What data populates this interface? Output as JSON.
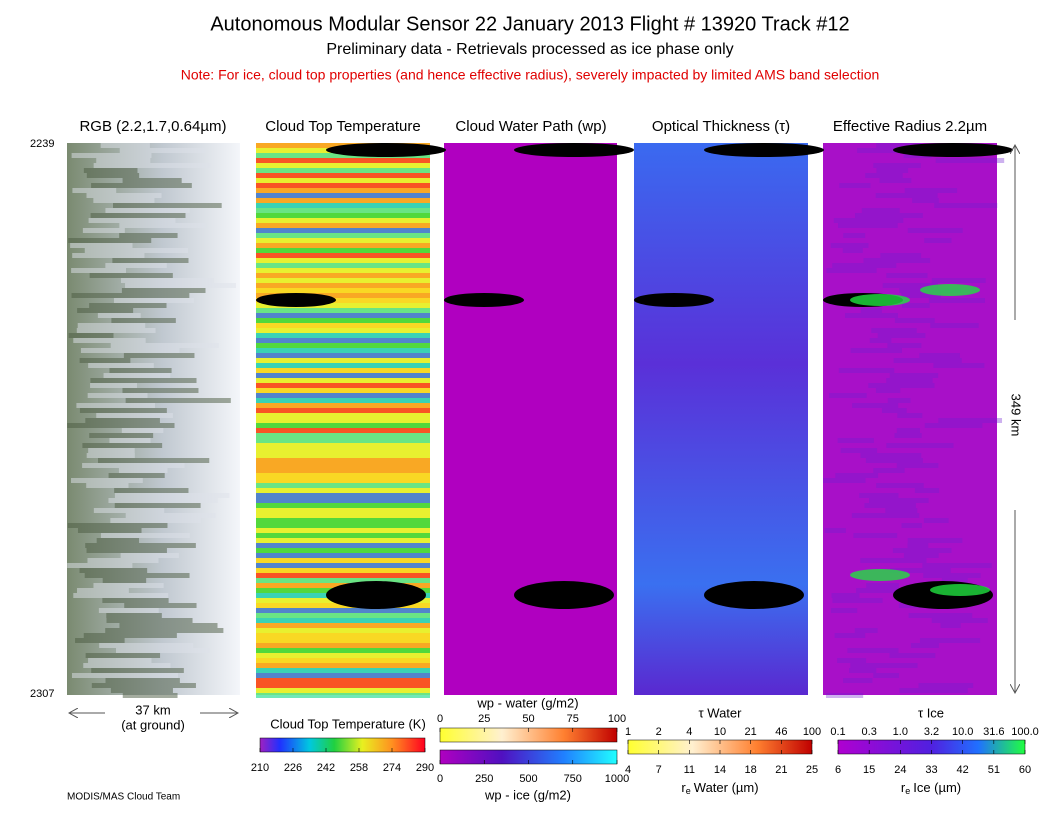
{
  "header": {
    "title": "Autonomous Modular Sensor  22 January 2013  Flight # 13920 Track #12",
    "subtitle": "Preliminary data - Retrievals processed as ice phase only",
    "note": "Note: For ice, cloud top properties (and hence effective radius), severely impacted by limited AMS band selection"
  },
  "panels": [
    {
      "title": "RGB (2.2,1.7,0.64µm)"
    },
    {
      "title": "Cloud Top Temperature"
    },
    {
      "title": "Cloud Water Path (wp)"
    },
    {
      "title": "Optical Thickness (τ)"
    },
    {
      "title": "Effective Radius 2.2µm"
    }
  ],
  "scan_lines": {
    "top": "2239",
    "bottom": "2307"
  },
  "along_track": "349 km",
  "cross_track": {
    "distance": "37 km",
    "note": "(at ground)"
  },
  "colorbars": {
    "temperature": {
      "title": "Cloud Top Temperature (K)",
      "ticks": [
        "210",
        "226",
        "242",
        "258",
        "274",
        "290"
      ]
    },
    "wp_water": {
      "title": "wp - water (g/m2)",
      "ticks": [
        "0",
        "25",
        "50",
        "75",
        "100"
      ]
    },
    "wp_ice": {
      "title": "wp - ice (g/m2)",
      "ticks": [
        "0",
        "250",
        "500",
        "750",
        "1000"
      ]
    },
    "tau_water": {
      "title": "τ Water",
      "ticks": [
        "1",
        "2",
        "4",
        "10",
        "21",
        "46",
        "100"
      ]
    },
    "re_water": {
      "symbol": "r",
      "subscript": "e",
      "title": "Water (µm)",
      "ticks": [
        "4",
        "7",
        "11",
        "14",
        "18",
        "21",
        "25"
      ]
    },
    "tau_ice": {
      "title": "τ Ice",
      "ticks": [
        "0.1",
        "0.3",
        "1.0",
        "3.2",
        "10.0",
        "31.6",
        "100.0"
      ]
    },
    "re_ice": {
      "symbol": "r",
      "subscript": "e",
      "title": "Ice (µm)",
      "ticks": [
        "6",
        "15",
        "24",
        "33",
        "42",
        "51",
        "60"
      ]
    }
  },
  "footer": "MODIS/MAS Cloud Team"
}
